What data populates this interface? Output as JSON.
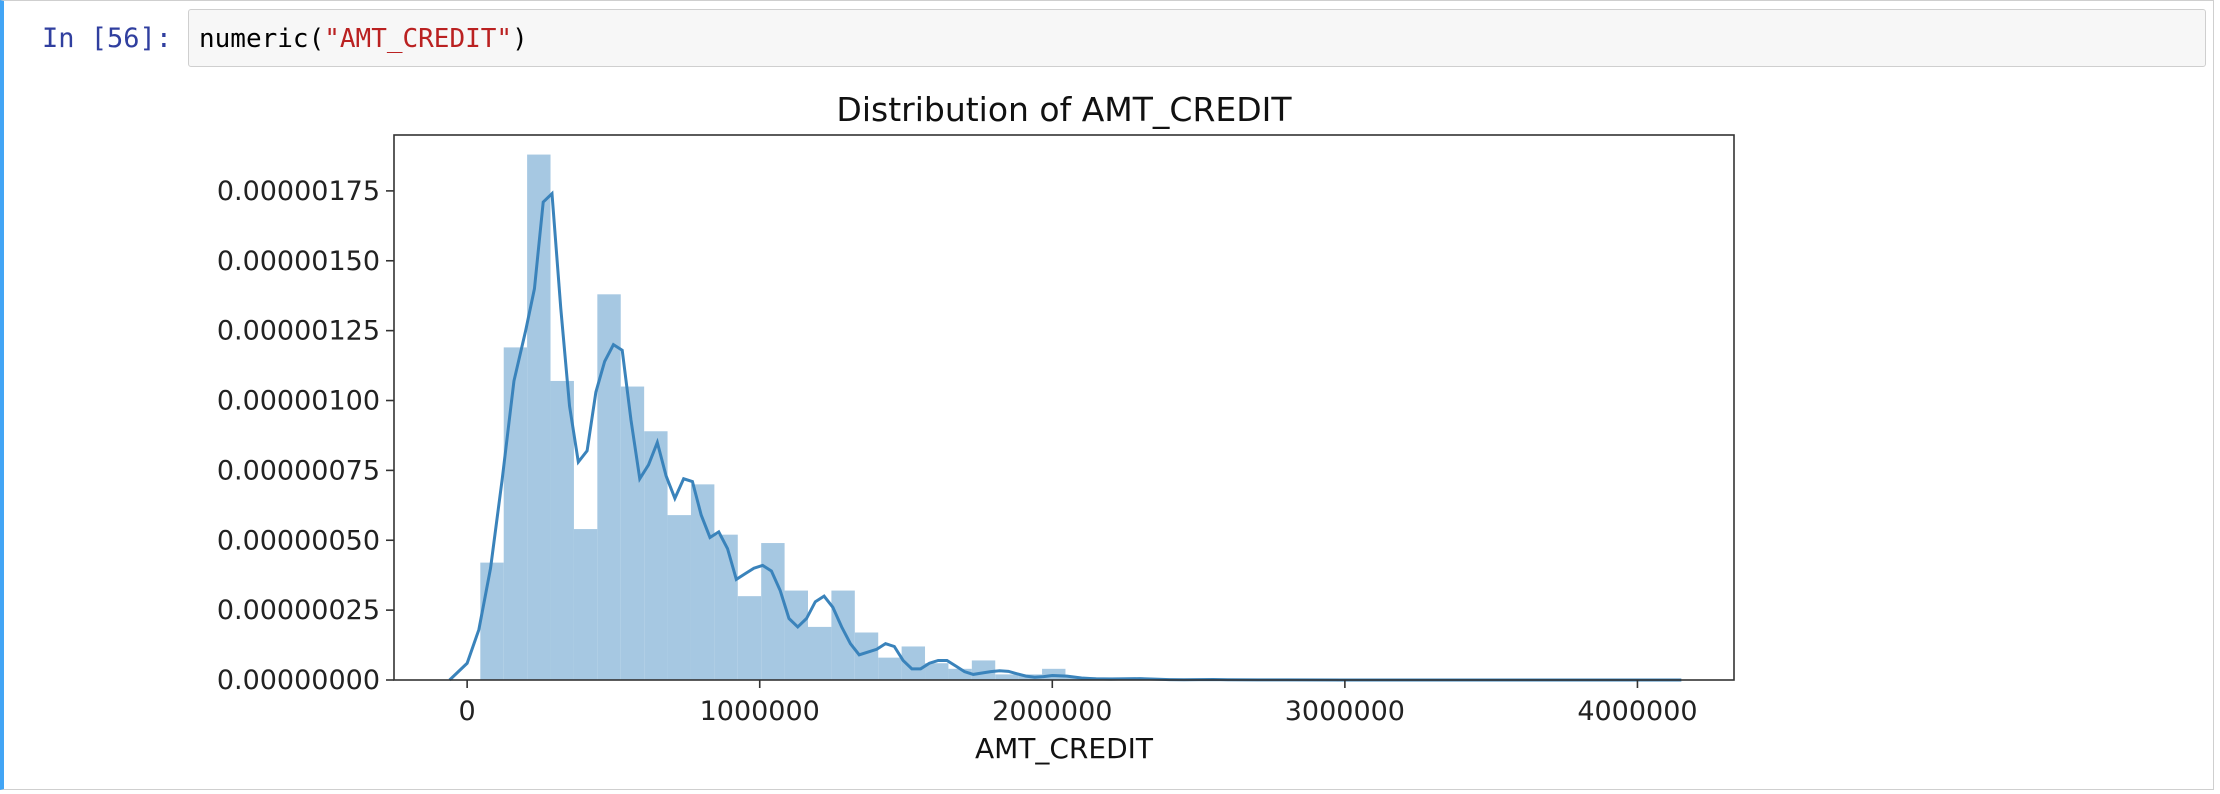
{
  "cell": {
    "prompt": "In [56]:",
    "code": {
      "func": "numeric(",
      "arg": "\"AMT_CREDIT\"",
      "close": ")"
    }
  },
  "colors": {
    "accent_border": "#42a5f5",
    "prompt": "#303f9f",
    "string": "#ba2121",
    "bar_fill": "#a6c8e2",
    "kde_line": "#3a83bb"
  },
  "chart_data": {
    "type": "bar",
    "title": "Distribution of AMT_CREDIT",
    "xlabel": "AMT_CREDIT",
    "ylabel": "",
    "xlim": [
      -250000,
      4330000
    ],
    "ylim": [
      0,
      1.95e-06
    ],
    "x_ticks": [
      0,
      1000000,
      2000000,
      3000000,
      4000000
    ],
    "x_tick_labels": [
      "0",
      "1000000",
      "2000000",
      "3000000",
      "4000000"
    ],
    "y_ticks": [
      0,
      2.5e-07,
      5e-07,
      7.5e-07,
      1e-06,
      1.25e-06,
      1.5e-06,
      1.75e-06
    ],
    "y_tick_labels": [
      "0.00000000",
      "0.00000025",
      "0.00000050",
      "0.00000075",
      "0.00000100",
      "0.00000125",
      "0.00000150",
      "0.00000175"
    ],
    "grid": false,
    "bin_width": 80000,
    "histogram": {
      "bin_starts": [
        45000,
        125000,
        205000,
        285000,
        365000,
        445000,
        525000,
        605000,
        685000,
        765000,
        845000,
        925000,
        1005000,
        1085000,
        1165000,
        1245000,
        1325000,
        1405000,
        1485000,
        1565000,
        1645000,
        1725000,
        1805000,
        1885000,
        1965000,
        2045000,
        2125000,
        2205000,
        2285000,
        2365000,
        2445000,
        2525000,
        2605000,
        2685000,
        2765000,
        2845000,
        2925000,
        3005000,
        3085000,
        3165000,
        3245000,
        3325000,
        3405000,
        3485000,
        3565000,
        3645000,
        3725000,
        3805000,
        3885000,
        3965000,
        4045000
      ],
      "values": [
        4.2e-07,
        1.19e-06,
        1.88e-06,
        1.07e-06,
        5.4e-07,
        1.38e-06,
        1.05e-06,
        8.9e-07,
        5.9e-07,
        7e-07,
        5.2e-07,
        3e-07,
        4.9e-07,
        3.2e-07,
        1.9e-07,
        3.2e-07,
        1.7e-07,
        8e-08,
        1.2e-07,
        6e-08,
        4e-08,
        7e-08,
        2e-08,
        2e-08,
        4e-08,
        1e-08,
        1e-08,
        1e-08,
        5e-09,
        3e-09,
        5e-09,
        3e-09,
        2e-09,
        1e-09,
        1e-09,
        1e-09,
        1e-09,
        1e-09,
        1e-09,
        1e-09,
        1e-09,
        1e-09,
        1e-09,
        1e-09,
        1e-09,
        1e-09,
        1e-09,
        1e-09,
        1e-09,
        1e-09,
        1e-09
      ]
    },
    "kde": {
      "x": [
        -60000,
        0,
        40000,
        80000,
        120000,
        160000,
        200000,
        230000,
        260000,
        290000,
        320000,
        350000,
        380000,
        410000,
        440000,
        470000,
        500000,
        530000,
        560000,
        590000,
        620000,
        650000,
        680000,
        710000,
        740000,
        770000,
        800000,
        830000,
        860000,
        890000,
        920000,
        950000,
        980000,
        1010000,
        1040000,
        1070000,
        1100000,
        1130000,
        1160000,
        1190000,
        1220000,
        1250000,
        1280000,
        1310000,
        1340000,
        1370000,
        1400000,
        1430000,
        1460000,
        1490000,
        1520000,
        1550000,
        1580000,
        1610000,
        1640000,
        1670000,
        1700000,
        1730000,
        1760000,
        1790000,
        1820000,
        1850000,
        1880000,
        1910000,
        1940000,
        1970000,
        2000000,
        2050000,
        2100000,
        2150000,
        2200000,
        2250000,
        2300000,
        2350000,
        2400000,
        2450000,
        2500000,
        2550000,
        2600000,
        2700000,
        2800000,
        3000000,
        3200000,
        3500000,
        3800000,
        4000000,
        4150000
      ],
      "y": [
        0,
        6e-08,
        1.8e-07,
        4e-07,
        7.2e-07,
        1.07e-06,
        1.25e-06,
        1.4e-06,
        1.71e-06,
        1.74e-06,
        1.33e-06,
        9.8e-07,
        7.8e-07,
        8.2e-07,
        1.03e-06,
        1.14e-06,
        1.2e-06,
        1.18e-06,
        9.3e-07,
        7.2e-07,
        7.7e-07,
        8.5e-07,
        7.3e-07,
        6.5e-07,
        7.2e-07,
        7.1e-07,
        5.9e-07,
        5.1e-07,
        5.3e-07,
        4.7e-07,
        3.6e-07,
        3.8e-07,
        4e-07,
        4.1e-07,
        3.9e-07,
        3.2e-07,
        2.2e-07,
        1.9e-07,
        2.2e-07,
        2.8e-07,
        3e-07,
        2.6e-07,
        1.9e-07,
        1.3e-07,
        9e-08,
        1e-07,
        1.1e-07,
        1.3e-07,
        1.2e-07,
        7e-08,
        4e-08,
        4e-08,
        6e-08,
        7e-08,
        7e-08,
        5e-08,
        3e-08,
        2e-08,
        2.5e-08,
        3e-08,
        3.3e-08,
        3.1e-08,
        2.2e-08,
        1.4e-08,
        1e-08,
        1.2e-08,
        1.6e-08,
        1.4e-08,
        7e-09,
        4e-09,
        3e-09,
        4e-09,
        5e-09,
        3e-09,
        1.5e-09,
        1e-09,
        1.2e-09,
        2e-09,
        1e-09,
        5e-10,
        3e-10,
        2e-10,
        1e-10,
        1e-10,
        1e-10,
        0,
        0
      ]
    }
  }
}
